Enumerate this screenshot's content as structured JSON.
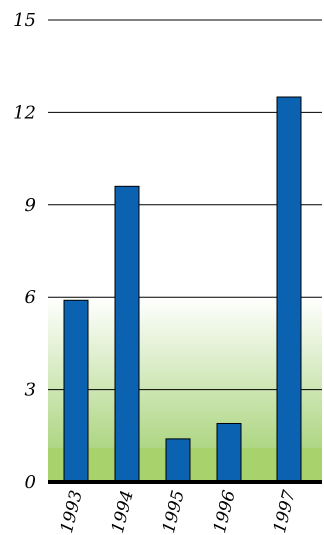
{
  "chart_data": {
    "type": "bar",
    "categories": [
      "1993",
      "1994",
      "1995",
      "1996",
      "1997"
    ],
    "values": [
      5.9,
      9.6,
      1.4,
      1.9,
      12.5
    ],
    "title": "",
    "xlabel": "",
    "ylabel": "",
    "ylim": [
      0,
      15
    ],
    "yticks": [
      0,
      3,
      6,
      9,
      12,
      15
    ],
    "grid": true,
    "colors": {
      "bar": "#0a62b0",
      "bar_edge": "#000000",
      "gradient_top": "#ffffff",
      "gradient_bottom": "#9ccd68",
      "band": "#a7d26c",
      "gridline": "#000000",
      "axis": "#000000"
    }
  }
}
